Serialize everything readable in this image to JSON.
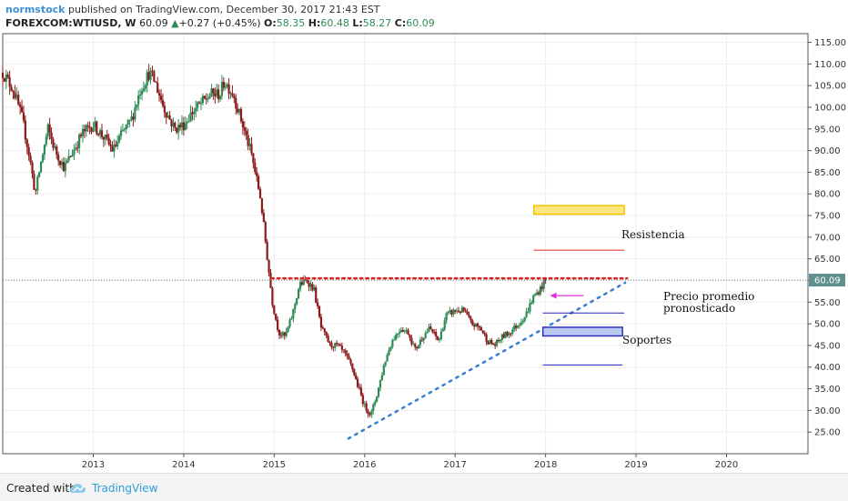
{
  "header": {
    "author": "normstock",
    "published_text": "published on TradingView.com, December 30, 2017 21:43 EST",
    "symbol": "FOREXCOM:WTIUSD, W",
    "last": "60.09",
    "change": "+0.27 (+0.45%)",
    "open_label": "O:",
    "open": "58.35",
    "high_label": "H:",
    "high": "60.48",
    "low_label": "L:",
    "low": "58.27",
    "close_label": "C:",
    "close": "60.09"
  },
  "footer": {
    "created_with": "Created with",
    "brand": "TradingView"
  },
  "colors": {
    "up": "#2e8b57",
    "down": "#8b1a1a",
    "accent": "#3d8fd1",
    "price_tag": "#5f8f8f"
  },
  "chart_data": {
    "type": "candlestick",
    "y_range": [
      20,
      117
    ],
    "y_ticks": [
      25,
      30,
      35,
      40,
      45,
      50,
      55,
      60,
      65,
      70,
      75,
      80,
      85,
      90,
      95,
      100,
      105,
      110,
      115
    ],
    "y_tick_labels": [
      "25.00",
      "30.00",
      "35.00",
      "40.00",
      "45.00",
      "50.00",
      "55.00",
      "60.00",
      "65.00",
      "70.00",
      "75.00",
      "80.00",
      "85.00",
      "90.00",
      "95.00",
      "100.00",
      "105.00",
      "110.00",
      "115.00"
    ],
    "x_range": [
      2012.0,
      2020.9
    ],
    "x_ticks": [
      2013,
      2014,
      2015,
      2016,
      2017,
      2018,
      2019,
      2020
    ],
    "x_tick_labels": [
      "2013",
      "2014",
      "2015",
      "2016",
      "2017",
      "2018",
      "2019",
      "2020"
    ],
    "grid": true,
    "last_price": 60.09,
    "last_price_label": "60.09",
    "price_path": [
      [
        2012.0,
        108
      ],
      [
        2012.12,
        104
      ],
      [
        2012.22,
        97
      ],
      [
        2012.3,
        88
      ],
      [
        2012.36,
        80
      ],
      [
        2012.42,
        87
      ],
      [
        2012.5,
        95
      ],
      [
        2012.58,
        90
      ],
      [
        2012.68,
        86
      ],
      [
        2012.78,
        90
      ],
      [
        2012.88,
        94
      ],
      [
        2013.0,
        96
      ],
      [
        2013.12,
        93
      ],
      [
        2013.22,
        90
      ],
      [
        2013.32,
        94
      ],
      [
        2013.42,
        97
      ],
      [
        2013.52,
        104
      ],
      [
        2013.62,
        108
      ],
      [
        2013.68,
        106
      ],
      [
        2013.78,
        100
      ],
      [
        2013.9,
        95
      ],
      [
        2014.0,
        96
      ],
      [
        2014.1,
        99
      ],
      [
        2014.2,
        101
      ],
      [
        2014.3,
        103
      ],
      [
        2014.4,
        103
      ],
      [
        2014.45,
        106
      ],
      [
        2014.55,
        103
      ],
      [
        2014.65,
        96
      ],
      [
        2014.75,
        89
      ],
      [
        2014.85,
        79
      ],
      [
        2014.92,
        66
      ],
      [
        2014.98,
        55
      ],
      [
        2015.05,
        48
      ],
      [
        2015.12,
        47
      ],
      [
        2015.2,
        52
      ],
      [
        2015.28,
        59
      ],
      [
        2015.36,
        60
      ],
      [
        2015.44,
        58
      ],
      [
        2015.52,
        49
      ],
      [
        2015.62,
        45
      ],
      [
        2015.7,
        45
      ],
      [
        2015.78,
        43
      ],
      [
        2015.86,
        40
      ],
      [
        2015.92,
        36
      ],
      [
        2016.0,
        31
      ],
      [
        2016.07,
        29
      ],
      [
        2016.14,
        34
      ],
      [
        2016.22,
        41
      ],
      [
        2016.3,
        46
      ],
      [
        2016.4,
        49
      ],
      [
        2016.48,
        48
      ],
      [
        2016.56,
        44
      ],
      [
        2016.64,
        47
      ],
      [
        2016.72,
        49
      ],
      [
        2016.82,
        46
      ],
      [
        2016.9,
        52
      ],
      [
        2017.0,
        53
      ],
      [
        2017.1,
        53
      ],
      [
        2017.18,
        50
      ],
      [
        2017.28,
        49
      ],
      [
        2017.36,
        46
      ],
      [
        2017.44,
        45
      ],
      [
        2017.52,
        47
      ],
      [
        2017.6,
        48
      ],
      [
        2017.7,
        50
      ],
      [
        2017.78,
        52
      ],
      [
        2017.86,
        56
      ],
      [
        2017.94,
        58
      ],
      [
        2018.0,
        60.09
      ]
    ],
    "overlays": [
      {
        "kind": "hline-dotted",
        "y": 60.5,
        "x_from": 2014.97,
        "x_to": 2018.9,
        "color": "#e02020"
      },
      {
        "kind": "trend-dotted",
        "from": [
          2015.82,
          23.5
        ],
        "to": [
          2018.88,
          59.5
        ],
        "color": "#3a7fcf"
      },
      {
        "kind": "rect",
        "y_from": 75.3,
        "y_to": 77.3,
        "x_from": 2017.87,
        "x_to": 2018.87,
        "color": "#f2c400",
        "fill": "#ffe680"
      },
      {
        "kind": "hline",
        "y": 67,
        "x_from": 2017.87,
        "x_to": 2018.87,
        "color": "#e02020"
      },
      {
        "kind": "arrow",
        "from": [
          2018.42,
          56.5
        ],
        "to": [
          2018.05,
          56.5
        ],
        "color": "#e030e0"
      },
      {
        "kind": "hline",
        "y": 52.5,
        "x_from": 2017.97,
        "x_to": 2018.87,
        "color": "#2020c0"
      },
      {
        "kind": "rect",
        "y_from": 47.2,
        "y_to": 49.2,
        "x_from": 2017.97,
        "x_to": 2018.85,
        "color": "#3030c0",
        "fill": "#b8c8f0"
      },
      {
        "kind": "hline",
        "y": 40.5,
        "x_from": 2017.97,
        "x_to": 2018.85,
        "color": "#2020c0"
      }
    ],
    "annotations": {
      "resistencia": "Resistencia",
      "precio_line1": "Precio promedio",
      "precio_line2": "pronosticado",
      "soportes": "Soportes"
    }
  }
}
